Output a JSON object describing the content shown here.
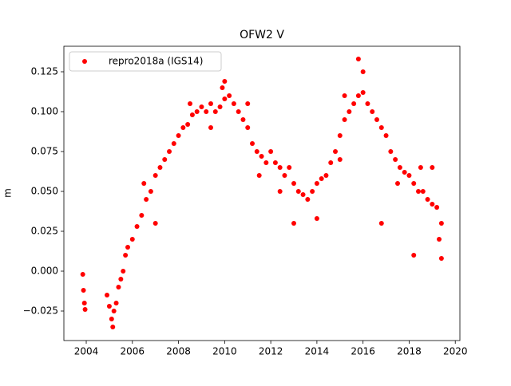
{
  "chart_data": {
    "type": "scatter",
    "title": "OFW2 V",
    "ylabel": "m",
    "legend": "upper left",
    "xlim": [
      2003.03,
      2020.2
    ],
    "ylim": [
      -0.0435,
      0.141
    ],
    "xticks": [
      2004,
      2006,
      2008,
      2010,
      2012,
      2014,
      2016,
      2018,
      2020
    ],
    "yticks": [
      {
        "value": -0.025,
        "label": "−0.025"
      },
      {
        "value": 0,
        "label": "0.000"
      },
      {
        "value": 0.025,
        "label": "0.025"
      },
      {
        "value": 0.05,
        "label": "0.050"
      },
      0.075,
      {
        "value": 0.1,
        "label": "0.100"
      },
      0.125
    ],
    "series": [
      {
        "name": "repro2018a (IGS14)",
        "color": "#ff0000",
        "x": [
          2003.85,
          2003.88,
          2003.92,
          2003.95,
          2004.9,
          2005.0,
          2005.1,
          2005.2,
          2005.3,
          2005.4,
          2005.5,
          2005.6,
          2005.7,
          2005.8,
          2006.0,
          2006.2,
          2006.4,
          2006.6,
          2006.8,
          2007.0,
          2007.2,
          2007.4,
          2007.6,
          2007.8,
          2008.0,
          2008.2,
          2008.4,
          2008.6,
          2008.8,
          2009.0,
          2009.2,
          2009.4,
          2009.6,
          2009.8,
          2010.0,
          2010.2,
          2010.4,
          2010.6,
          2010.8,
          2011.0,
          2011.2,
          2011.4,
          2011.6,
          2011.8,
          2012.0,
          2012.2,
          2012.4,
          2012.6,
          2012.8,
          2013.0,
          2013.2,
          2013.4,
          2013.6,
          2013.8,
          2014.0,
          2014.2,
          2014.4,
          2014.6,
          2014.8,
          2015.0,
          2015.2,
          2015.4,
          2015.6,
          2015.8,
          2016.0,
          2016.2,
          2016.4,
          2016.6,
          2016.8,
          2017.0,
          2017.2,
          2017.4,
          2017.6,
          2017.8,
          2018.0,
          2018.2,
          2018.4,
          2018.6,
          2018.8,
          2019.0,
          2019.2,
          2019.4,
          2005.15,
          2009.9,
          2010.0,
          2015.8,
          2018.2,
          2019.4,
          2016.8,
          2013.0,
          2014.0,
          2007.0,
          2012.4,
          2008.5,
          2016.0,
          2015.2,
          2015.0,
          2017.5,
          2011.0,
          2011.5,
          2018.5,
          2019.0,
          2019.3,
          2006.5,
          2009.4
        ],
        "values": [
          -0.002,
          -0.012,
          -0.02,
          -0.024,
          -0.015,
          -0.022,
          -0.03,
          -0.025,
          -0.02,
          -0.01,
          -0.005,
          0.0,
          0.01,
          0.015,
          0.02,
          0.028,
          0.035,
          0.045,
          0.05,
          0.06,
          0.065,
          0.07,
          0.075,
          0.08,
          0.085,
          0.09,
          0.092,
          0.098,
          0.1,
          0.103,
          0.1,
          0.105,
          0.1,
          0.103,
          0.108,
          0.11,
          0.105,
          0.1,
          0.095,
          0.09,
          0.08,
          0.075,
          0.072,
          0.068,
          0.075,
          0.068,
          0.065,
          0.06,
          0.065,
          0.055,
          0.05,
          0.048,
          0.045,
          0.05,
          0.055,
          0.058,
          0.06,
          0.068,
          0.075,
          0.085,
          0.095,
          0.1,
          0.105,
          0.11,
          0.112,
          0.105,
          0.1,
          0.095,
          0.09,
          0.085,
          0.075,
          0.07,
          0.065,
          0.062,
          0.06,
          0.055,
          0.05,
          0.05,
          0.045,
          0.042,
          0.04,
          0.03,
          -0.035,
          0.115,
          0.119,
          0.133,
          0.01,
          0.008,
          0.03,
          0.03,
          0.033,
          0.03,
          0.05,
          0.105,
          0.125,
          0.11,
          0.07,
          0.055,
          0.105,
          0.06,
          0.065,
          0.065,
          0.02,
          0.055,
          0.09
        ]
      }
    ]
  }
}
